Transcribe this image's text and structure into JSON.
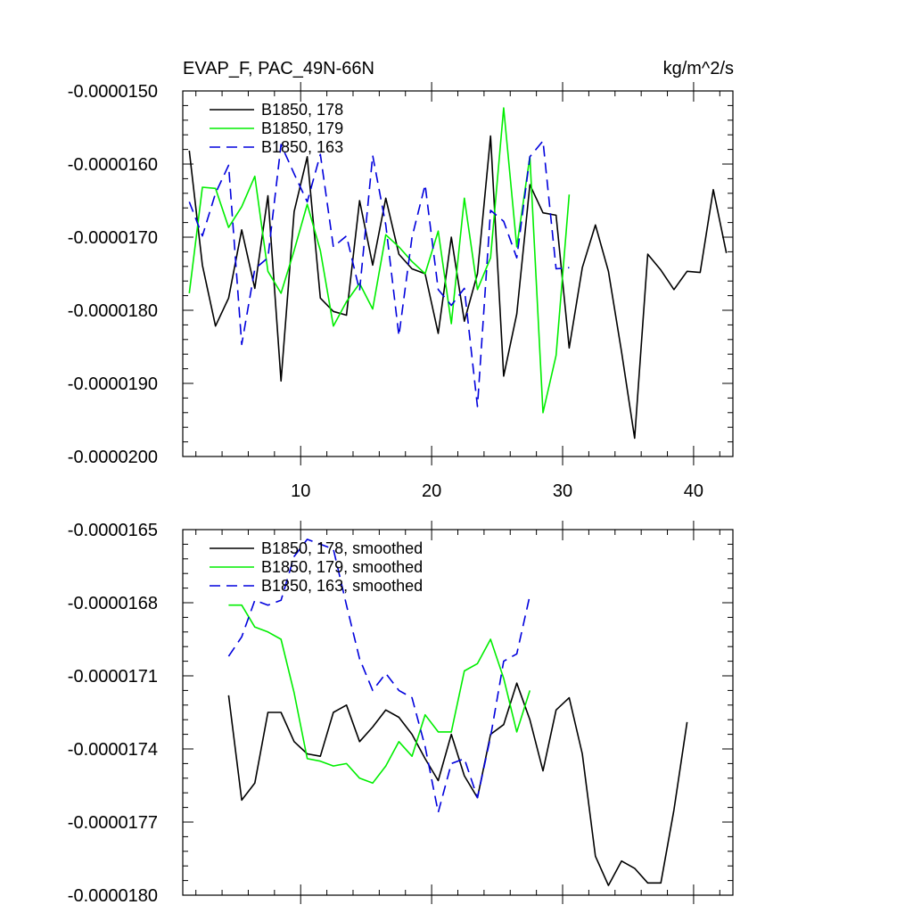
{
  "chart_data": [
    {
      "type": "line",
      "title": "EVAP_F, PAC_49N-66N",
      "units": "kg/m^2/s",
      "xlim": [
        1,
        43
      ],
      "ylim": [
        -2e-05,
        -1.5e-05
      ],
      "xticks": [
        {
          "value": 10,
          "label": "10"
        },
        {
          "value": 20,
          "label": "20"
        },
        {
          "value": 30,
          "label": "30"
        },
        {
          "value": 40,
          "label": "40"
        }
      ],
      "yticks": [
        {
          "value": -1.5e-05,
          "label": "-0.0000150"
        },
        {
          "value": -1.6e-05,
          "label": "-0.0000160"
        },
        {
          "value": -1.7e-05,
          "label": "-0.0000170"
        },
        {
          "value": -1.8e-05,
          "label": "-0.0000180"
        },
        {
          "value": -1.9e-05,
          "label": "-0.0000190"
        },
        {
          "value": -2e-05,
          "label": "-0.0000200"
        }
      ],
      "series": [
        {
          "name": "B1850, 178",
          "color": "#000000",
          "dash": "",
          "x": [
            1.5,
            2.5,
            3.5,
            4.5,
            5.5,
            6.5,
            7.5,
            8.5,
            9.5,
            10.5,
            11.5,
            12.5,
            13.5,
            14.5,
            15.5,
            16.5,
            17.5,
            18.5,
            19.5,
            20.5,
            21.5,
            22.5,
            23.5,
            24.5,
            25.5,
            26.5,
            27.5,
            28.5,
            29.5,
            30.5,
            31.5,
            32.5,
            33.5,
            34.5,
            35.5,
            36.5,
            37.5,
            38.5,
            39.5,
            40.5,
            41.5,
            42.5
          ],
          "values": [
            -1.5817e-05,
            -1.7383e-05,
            -1.8216e-05,
            -1.7833e-05,
            -1.69e-05,
            -1.77e-05,
            -1.6433e-05,
            -1.8967e-05,
            -1.665e-05,
            -1.59e-05,
            -1.7833e-05,
            -1.8016e-05,
            -1.8067e-05,
            -1.65e-05,
            -1.7383e-05,
            -1.6467e-05,
            -1.7233e-05,
            -1.7433e-05,
            -1.75e-05,
            -1.8316e-05,
            -1.7e-05,
            -1.815e-05,
            -1.75e-05,
            -1.5617e-05,
            -1.89e-05,
            -1.805e-05,
            -1.6283e-05,
            -1.6667e-05,
            -1.67e-05,
            -1.8516e-05,
            -1.7417e-05,
            -1.6833e-05,
            -1.7467e-05,
            -1.8567e-05,
            -1.975e-05,
            -1.7233e-05,
            -1.745e-05,
            -1.7717e-05,
            -1.7467e-05,
            -1.7483e-05,
            -1.635e-05,
            -1.7217e-05
          ]
        },
        {
          "name": "B1850, 179",
          "color": "#00ee00",
          "dash": "",
          "x": [
            1.5,
            2.5,
            3.5,
            4.5,
            5.5,
            6.5,
            7.5,
            8.5,
            9.5,
            10.5,
            11.5,
            12.5,
            13.5,
            14.5,
            15.5,
            16.5,
            17.5,
            18.5,
            19.5,
            20.5,
            21.5,
            22.5,
            23.5,
            24.5,
            25.5,
            26.5,
            27.5,
            28.5,
            29.5,
            30.5
          ],
          "values": [
            -1.7767e-05,
            -1.6317e-05,
            -1.6333e-05,
            -1.6867e-05,
            -1.6583e-05,
            -1.6167e-05,
            -1.7467e-05,
            -1.7767e-05,
            -1.7183e-05,
            -1.655e-05,
            -1.7183e-05,
            -1.8216e-05,
            -1.7883e-05,
            -1.7633e-05,
            -1.7983e-05,
            -1.6967e-05,
            -1.7133e-05,
            -1.7333e-05,
            -1.75e-05,
            -1.6917e-05,
            -1.8183e-05,
            -1.6467e-05,
            -1.7717e-05,
            -1.7283e-05,
            -1.5233e-05,
            -1.7133e-05,
            -1.59e-05,
            -1.94e-05,
            -1.8617e-05,
            -1.6417e-05
          ]
        },
        {
          "name": "B1850, 163",
          "color": "#0000dd",
          "dash": "12,7",
          "x": [
            1.5,
            2.5,
            3.5,
            4.5,
            5.5,
            6.5,
            7.5,
            8.5,
            9.5,
            10.5,
            11.5,
            12.5,
            13.5,
            14.5,
            15.5,
            16.5,
            17.5,
            18.5,
            19.5,
            20.5,
            21.5,
            22.5,
            23.5,
            24.5,
            25.5,
            26.5,
            27.5,
            28.5,
            29.5,
            30.5
          ],
          "values": [
            -1.6517e-05,
            -1.6983e-05,
            -1.64e-05,
            -1.6017e-05,
            -1.8467e-05,
            -1.7433e-05,
            -1.7283e-05,
            -1.5733e-05,
            -1.6133e-05,
            -1.6517e-05,
            -1.5867e-05,
            -1.7133e-05,
            -1.6983e-05,
            -1.7733e-05,
            -1.5883e-05,
            -1.6833e-05,
            -1.835e-05,
            -1.7e-05,
            -1.6283e-05,
            -1.7717e-05,
            -1.7933e-05,
            -1.77e-05,
            -1.9317e-05,
            -1.6633e-05,
            -1.6783e-05,
            -1.7283e-05,
            -1.59e-05,
            -1.5683e-05,
            -1.7433e-05,
            -1.7417e-05
          ]
        }
      ]
    },
    {
      "type": "line",
      "xlim": [
        1,
        43
      ],
      "ylim": [
        -1.8e-05,
        -1.65e-05
      ],
      "xticks": [
        {
          "value": 10,
          "label": ""
        },
        {
          "value": 20,
          "label": ""
        },
        {
          "value": 30,
          "label": ""
        },
        {
          "value": 40,
          "label": ""
        }
      ],
      "yticks": [
        {
          "value": -1.65e-05,
          "label": "-0.0000165"
        },
        {
          "value": -1.68e-05,
          "label": "-0.0000168"
        },
        {
          "value": -1.71e-05,
          "label": "-0.0000171"
        },
        {
          "value": -1.74e-05,
          "label": "-0.0000174"
        },
        {
          "value": -1.77e-05,
          "label": "-0.0000177"
        },
        {
          "value": -1.8e-05,
          "label": "-0.0000180"
        }
      ],
      "series": [
        {
          "name": "B1850, 178, smoothed",
          "color": "#000000",
          "dash": "",
          "x": [
            4.5,
            5.5,
            6.5,
            7.5,
            8.5,
            9.5,
            10.5,
            11.5,
            12.5,
            13.5,
            14.5,
            15.5,
            16.5,
            17.5,
            18.5,
            19.5,
            20.5,
            21.5,
            22.5,
            23.5,
            24.5,
            25.5,
            26.5,
            27.5,
            28.5,
            29.5,
            30.5,
            31.5,
            32.5,
            33.5,
            34.5,
            35.5,
            36.5,
            37.5,
            38.5,
            39.5
          ],
          "values": [
            -1.718e-05,
            -1.761e-05,
            -1.754e-05,
            -1.725e-05,
            -1.725e-05,
            -1.737e-05,
            -1.742e-05,
            -1.743e-05,
            -1.725e-05,
            -1.722e-05,
            -1.737e-05,
            -1.731e-05,
            -1.724e-05,
            -1.727e-05,
            -1.734e-05,
            -1.744e-05,
            -1.753e-05,
            -1.734e-05,
            -1.751e-05,
            -1.76e-05,
            -1.734e-05,
            -1.73e-05,
            -1.713e-05,
            -1.728e-05,
            -1.749e-05,
            -1.724e-05,
            -1.719e-05,
            -1.742e-05,
            -1.784e-05,
            -1.796e-05,
            -1.786e-05,
            -1.789e-05,
            -1.795e-05,
            -1.795e-05,
            -1.765e-05,
            -1.729e-05
          ]
        },
        {
          "name": "B1850, 179, smoothed",
          "color": "#00ee00",
          "dash": "",
          "x": [
            4.5,
            5.5,
            6.5,
            7.5,
            8.5,
            9.5,
            10.5,
            11.5,
            12.5,
            13.5,
            14.5,
            15.5,
            16.5,
            17.5,
            18.5,
            19.5,
            20.5,
            21.5,
            22.5,
            23.5,
            24.5,
            25.5,
            26.5,
            27.5
          ],
          "values": [
            -1.681e-05,
            -1.681e-05,
            -1.69e-05,
            -1.692e-05,
            -1.695e-05,
            -1.717e-05,
            -1.744e-05,
            -1.745e-05,
            -1.747e-05,
            -1.746e-05,
            -1.752e-05,
            -1.754e-05,
            -1.747e-05,
            -1.737e-05,
            -1.743e-05,
            -1.726e-05,
            -1.733e-05,
            -1.733e-05,
            -1.708e-05,
            -1.705e-05,
            -1.695e-05,
            -1.711e-05,
            -1.733e-05,
            -1.716e-05
          ]
        },
        {
          "name": "B1850, 163, smoothed",
          "color": "#0000dd",
          "dash": "12,7",
          "x": [
            4.5,
            5.5,
            6.5,
            7.5,
            8.5,
            9.5,
            10.5,
            11.5,
            12.5,
            13.5,
            14.5,
            15.5,
            16.5,
            17.5,
            18.5,
            19.5,
            20.5,
            21.5,
            22.5,
            23.5,
            24.5,
            25.5,
            26.5,
            27.5
          ],
          "values": [
            -1.702e-05,
            -1.694e-05,
            -1.679e-05,
            -1.681e-05,
            -1.679e-05,
            -1.661e-05,
            -1.654e-05,
            -1.656e-05,
            -1.658e-05,
            -1.681e-05,
            -1.703e-05,
            -1.716e-05,
            -1.709e-05,
            -1.716e-05,
            -1.719e-05,
            -1.739e-05,
            -1.766e-05,
            -1.746e-05,
            -1.744e-05,
            -1.76e-05,
            -1.735e-05,
            -1.704e-05,
            -1.701e-05,
            -1.677e-05
          ]
        }
      ]
    }
  ]
}
